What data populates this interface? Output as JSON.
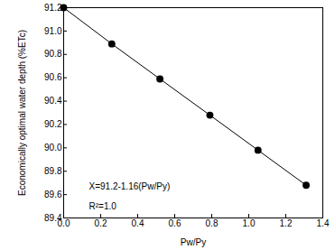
{
  "chart_data": {
    "type": "line",
    "xlabel": "Pw/Py",
    "ylabel": "Economically optimal water depth (%ETc)",
    "x": [
      0,
      0.26,
      0.52,
      0.79,
      1.05,
      1.31
    ],
    "values": [
      91.2,
      90.89,
      90.59,
      90.28,
      89.98,
      89.68
    ],
    "color": "#000000",
    "marker": "circle",
    "line_style": "solid",
    "xlim": [
      0,
      1.4
    ],
    "xticks": [
      {
        "value": 0,
        "label": "0.0"
      },
      0.2,
      0.4,
      0.6,
      0.8,
      {
        "value": 1,
        "label": "1.0"
      },
      1.2,
      1.4
    ],
    "ylim": [
      89.4,
      91.2
    ],
    "yticks": [
      89.4,
      89.6,
      89.8,
      {
        "value": 90,
        "label": "90.0"
      },
      90.2,
      90.4,
      90.6,
      90.8,
      {
        "value": 91,
        "label": "91.0"
      },
      91.2
    ],
    "grid": false,
    "annotations": [
      "X=91.2-1.16(Pw/Py)",
      "R²=1.0"
    ]
  }
}
